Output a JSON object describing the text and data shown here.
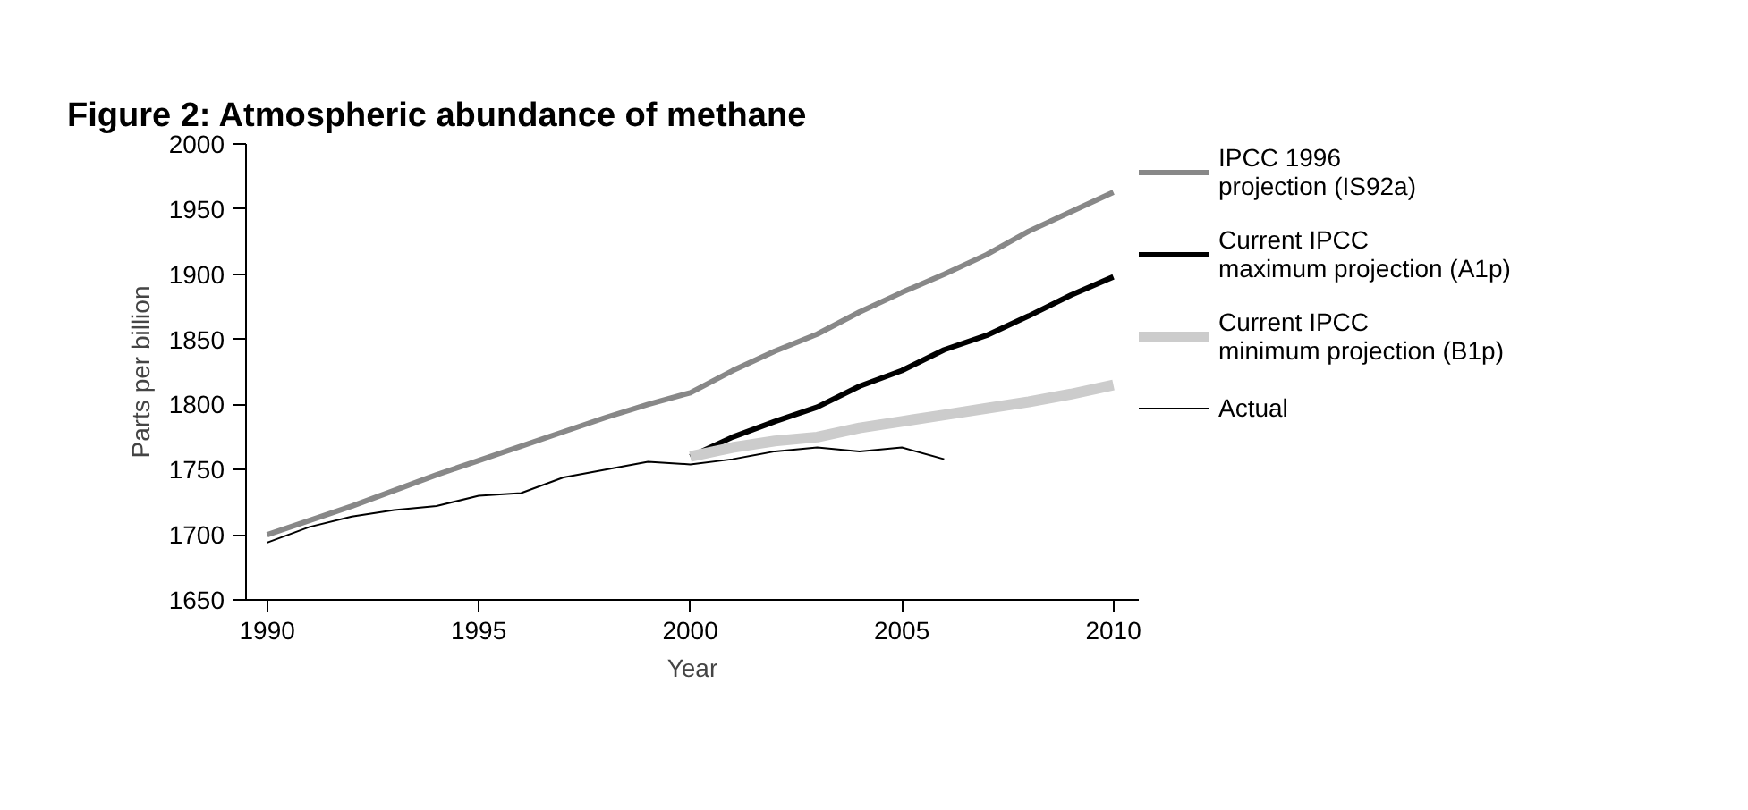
{
  "chart_data": {
    "type": "line",
    "title": "Figure 2: Atmospheric abundance of methane",
    "xlabel": "Year",
    "ylabel": "Parts per billion",
    "xlim": [
      1989.5,
      2010.6
    ],
    "xticks": [
      1990,
      1995,
      2000,
      2005,
      2010
    ],
    "ylim": [
      1650,
      2000
    ],
    "yticks": [
      1650,
      1700,
      1750,
      1800,
      1850,
      1900,
      1950,
      2000
    ],
    "legend": "right",
    "grid": false,
    "marker": "none",
    "line_style": "solid",
    "series": [
      {
        "name": "IPCC 1996\nprojection (IS92a)",
        "color": "#888888",
        "x": [
          1990,
          1991,
          1992,
          1993,
          1994,
          1995,
          1996,
          1997,
          1998,
          1999,
          2000,
          2001,
          2002,
          2003,
          2004,
          2005,
          2006,
          2007,
          2008,
          2009,
          2010
        ],
        "values": [
          1700,
          1711,
          1722,
          1734,
          1746,
          1757,
          1768,
          1779,
          1790,
          1800,
          1809,
          1826,
          1841,
          1854,
          1871,
          1886,
          1900,
          1915,
          1933,
          1948,
          1963
        ]
      },
      {
        "name": "Current IPCC\nmaximum projection (A1p)",
        "color": "#000000",
        "x": [
          2000,
          2001,
          2002,
          2003,
          2004,
          2005,
          2006,
          2007,
          2008,
          2009,
          2010
        ],
        "values": [
          1760,
          1775,
          1787,
          1798,
          1814,
          1826,
          1842,
          1853,
          1868,
          1884,
          1898
        ]
      },
      {
        "name": "Current IPCC\nminimum projection (B1p)",
        "color": "#cccccc",
        "x": [
          2000,
          2001,
          2002,
          2003,
          2004,
          2005,
          2006,
          2007,
          2008,
          2009,
          2010
        ],
        "values": [
          1760,
          1767,
          1772,
          1775,
          1782,
          1787,
          1792,
          1797,
          1802,
          1808,
          1815
        ]
      },
      {
        "name": "Actual",
        "color": "#000000",
        "x": [
          1990,
          1991,
          1992,
          1993,
          1994,
          1995,
          1996,
          1997,
          1998,
          1999,
          2000,
          2001,
          2002,
          2003,
          2004,
          2005,
          2006
        ],
        "values": [
          1694,
          1706,
          1714,
          1719,
          1722,
          1730,
          1732,
          1744,
          1750,
          1756,
          1754,
          1758,
          1764,
          1767,
          1764,
          1767,
          1758
        ]
      }
    ]
  }
}
